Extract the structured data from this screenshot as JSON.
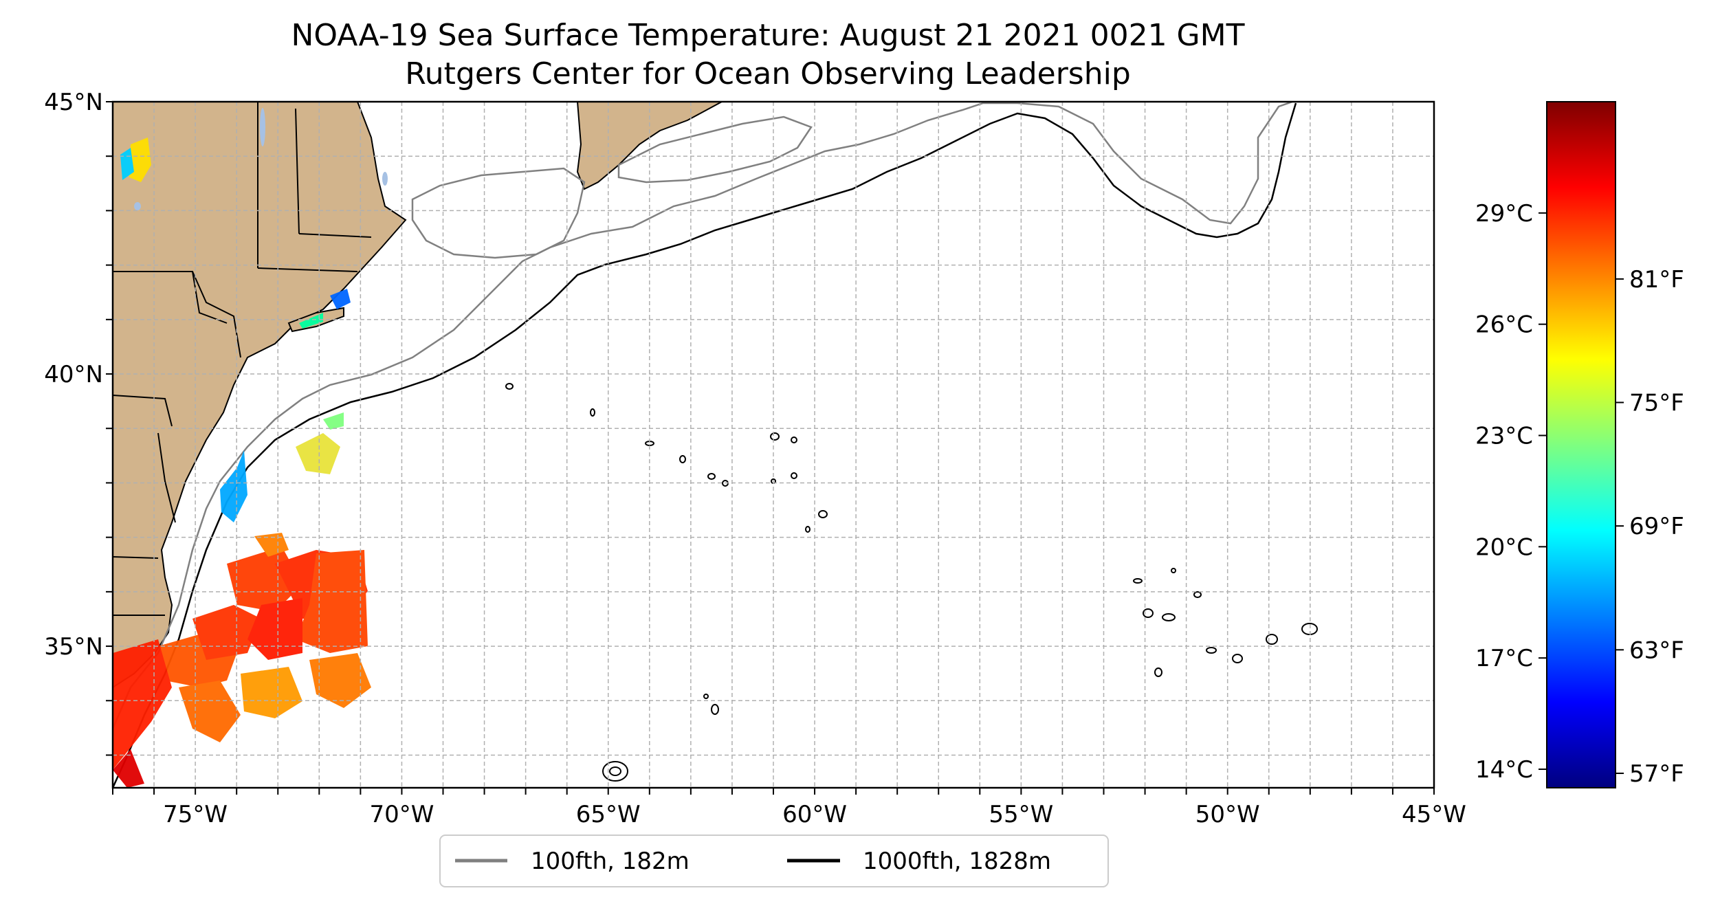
{
  "title": {
    "line1": "NOAA-19 Sea Surface Temperature: August 21 2021 0021 GMT",
    "line2": "Rutgers Center for Ocean Observing Leadership"
  },
  "axes": {
    "lon_range": [
      -77,
      -45
    ],
    "lat_range": [
      32.4,
      45
    ],
    "lat_labels": [
      {
        "lat": 45,
        "label": "45°N"
      },
      {
        "lat": 40,
        "label": "40°N"
      },
      {
        "lat": 35,
        "label": "35°N"
      }
    ],
    "lon_labels": [
      {
        "lon": -75,
        "label": "75°W"
      },
      {
        "lon": -70,
        "label": "70°W"
      },
      {
        "lon": -65,
        "label": "65°W"
      },
      {
        "lon": -60,
        "label": "60°W"
      },
      {
        "lon": -55,
        "label": "55°W"
      },
      {
        "lon": -50,
        "label": "50°W"
      },
      {
        "lon": -45,
        "label": "45°W"
      }
    ],
    "grid": "dashed every 1 degree"
  },
  "colorbar": {
    "colormap": "jet",
    "range_c": [
      13.5,
      32
    ],
    "celsius_ticks": [
      {
        "value": 14,
        "label": "14°C"
      },
      {
        "value": 17,
        "label": "17°C"
      },
      {
        "value": 20,
        "label": "20°C"
      },
      {
        "value": 23,
        "label": "23°C"
      },
      {
        "value": 26,
        "label": "26°C"
      },
      {
        "value": 29,
        "label": "29°C"
      }
    ],
    "fahrenheit_ticks": [
      {
        "value_c": 13.89,
        "label": "57°F"
      },
      {
        "value_c": 17.22,
        "label": "63°F"
      },
      {
        "value_c": 20.56,
        "label": "69°F"
      },
      {
        "value_c": 23.89,
        "label": "75°F"
      },
      {
        "value_c": 27.22,
        "label": "81°F"
      }
    ]
  },
  "legend": {
    "placement": "bottom-center",
    "items": [
      {
        "label": "100fth, 182m",
        "color": "#808080"
      },
      {
        "label": "1000fth, 1828m",
        "color": "#000000"
      }
    ]
  },
  "colors": {
    "land": "#d2b48c",
    "lakes": "#a6c1e4",
    "contour_100fth": "#808080",
    "contour_1000fth": "#000000"
  }
}
